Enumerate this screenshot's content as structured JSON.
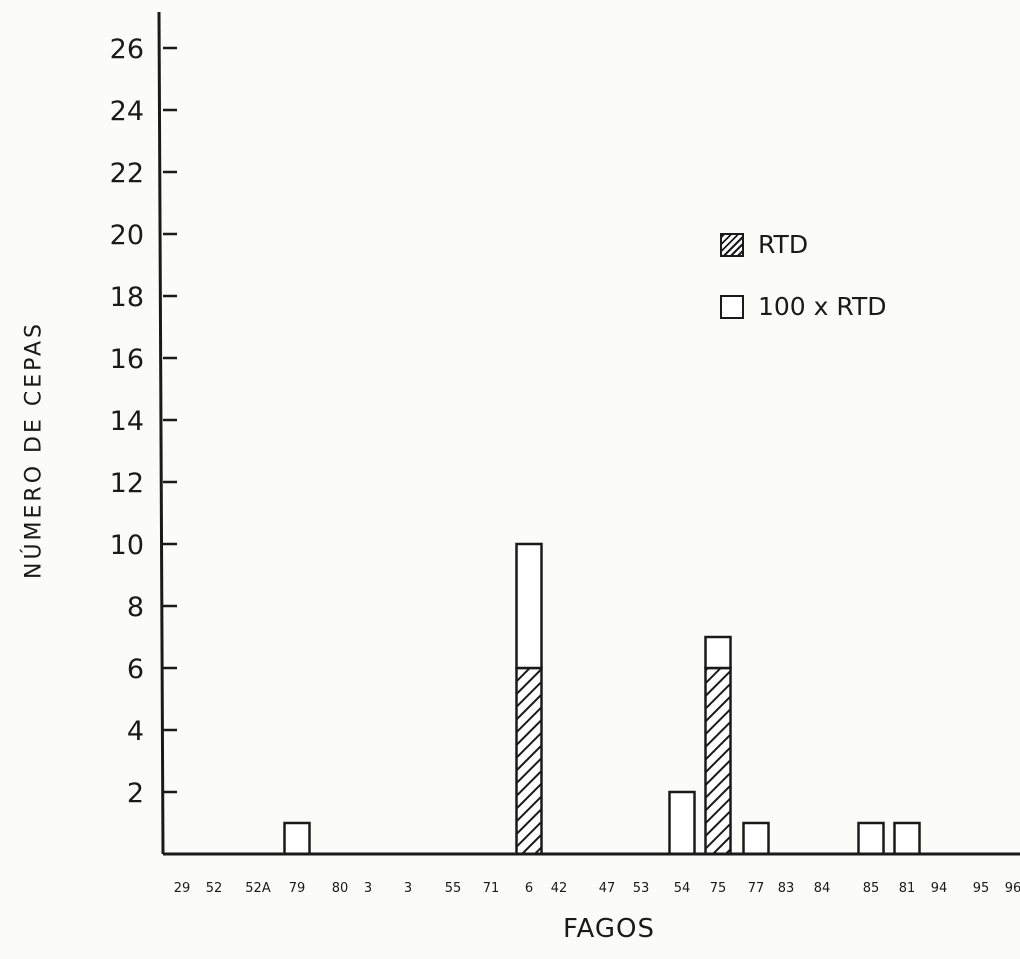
{
  "chart_data": {
    "type": "bar",
    "stacked": true,
    "xlabel": "FAGOS",
    "ylabel": "NÚMERO DE CEPAS",
    "ylim": [
      0,
      26
    ],
    "yticks": [
      "2",
      "4",
      "6",
      "8",
      "10",
      "12",
      "14",
      "16",
      "18",
      "20",
      "22",
      "24",
      "26"
    ],
    "categories": [
      "29",
      "52",
      "52A",
      "79",
      "80",
      "3",
      "3",
      "55",
      "71",
      "6",
      "42",
      "47",
      "53",
      "54",
      "75",
      "77",
      "83",
      "84",
      "85",
      "81",
      "94",
      "95",
      "96"
    ],
    "series": [
      {
        "name": "RTD",
        "color": "#1a1a1a",
        "pattern": "hatched",
        "values": [
          0,
          0,
          0,
          0,
          0,
          0,
          0,
          0,
          0,
          6,
          0,
          0,
          0,
          0,
          6,
          0,
          0,
          0,
          0,
          0,
          0,
          0,
          0
        ]
      },
      {
        "name": "100 x RTD",
        "color": "#ffffff",
        "pattern": "open",
        "values": [
          0,
          0,
          0,
          1,
          0,
          0,
          0,
          0,
          0,
          4,
          0,
          0,
          0,
          2,
          1,
          1,
          0,
          0,
          1,
          1,
          0,
          0,
          0
        ]
      }
    ],
    "legend_position": "upper-right",
    "grid": false
  }
}
